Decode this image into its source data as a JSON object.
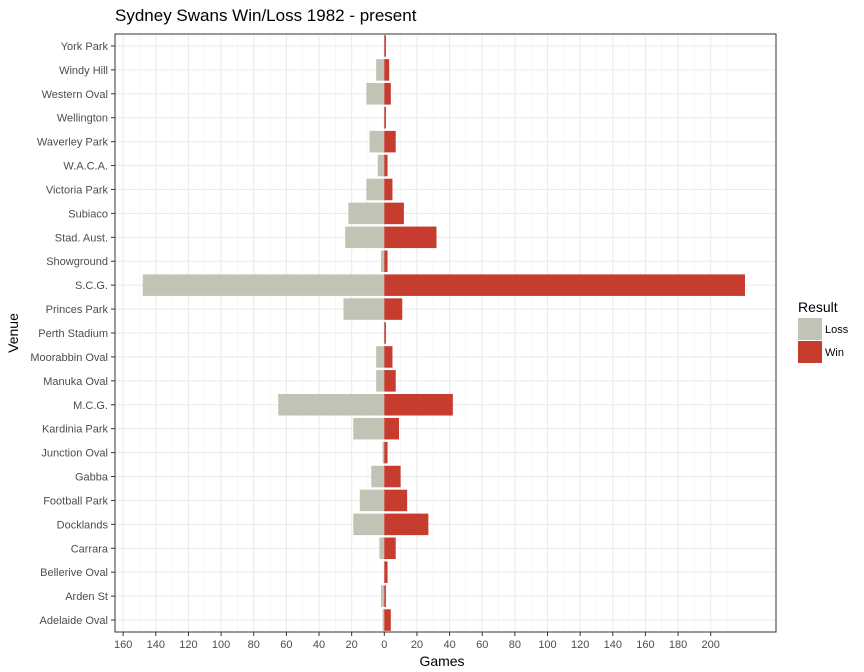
{
  "chart_data": {
    "type": "bar",
    "orientation": "horizontal",
    "diverging": true,
    "title": "Sydney Swans Win/Loss 1982 - present",
    "xlabel": "Games",
    "ylabel": "Venue",
    "xlim": [
      -165,
      240
    ],
    "xticks": [
      -160,
      -140,
      -120,
      -100,
      -80,
      -60,
      -40,
      -20,
      0,
      20,
      40,
      60,
      80,
      100,
      120,
      140,
      160,
      180,
      200
    ],
    "xtick_labels": [
      "160",
      "140",
      "120",
      "100",
      "80",
      "60",
      "40",
      "20",
      "0",
      "20",
      "40",
      "60",
      "80",
      "100",
      "120",
      "140",
      "160",
      "180",
      "200"
    ],
    "grid": true,
    "legend": {
      "title": "Result",
      "position": "right"
    },
    "categories": [
      "York Park",
      "Windy Hill",
      "Western Oval",
      "Wellington",
      "Waverley Park",
      "W.A.C.A.",
      "Victoria Park",
      "Subiaco",
      "Stad. Aust.",
      "Showground",
      "S.C.G.",
      "Princes Park",
      "Perth Stadium",
      "Moorabbin Oval",
      "Manuka Oval",
      "M.C.G.",
      "Kardinia Park",
      "Junction Oval",
      "Gabba",
      "Football Park",
      "Docklands",
      "Carrara",
      "Bellerive Oval",
      "Arden St",
      "Adelaide Oval"
    ],
    "series": [
      {
        "name": "Loss",
        "color": "#c2c3b5",
        "values": [
          0,
          5,
          11,
          0,
          9,
          4,
          11,
          22,
          24,
          2,
          148,
          25,
          0,
          5,
          5,
          65,
          19,
          1,
          8,
          15,
          19,
          3,
          0,
          2,
          1
        ]
      },
      {
        "name": "Win",
        "color": "#c63c2f",
        "values": [
          1,
          3,
          4,
          1,
          7,
          2,
          5,
          12,
          32,
          2,
          221,
          11,
          1,
          5,
          7,
          42,
          9,
          2,
          10,
          14,
          27,
          7,
          2,
          1,
          4
        ]
      }
    ]
  }
}
